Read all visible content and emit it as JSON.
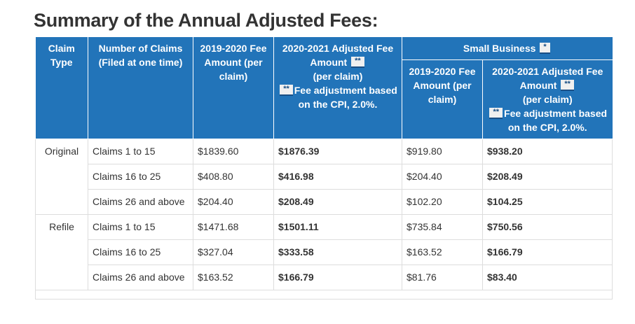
{
  "heading": "Summary of the Annual Adjusted Fees:",
  "table": {
    "headers": {
      "claim_type": "Claim Type",
      "num_claims": "Number of Claims (Filed at one time)",
      "fee_2019": "2019-2020 Fee Amount (per claim)",
      "adj_2020_line1": "2020-2021 Adjusted Fee Amount",
      "adj_2020_line2": "(per claim)",
      "adj_2020_line3": "Fee adjustment based on the CPI, 2.0%.",
      "small_business": "Small Business",
      "sb_fee_2019": "2019-2020 Fee Amount (per claim)",
      "sb_adj_line1": "2020-2021 Adjusted Fee Amount",
      "sb_adj_line2": "(per claim)",
      "sb_adj_line3": "Fee adjustment based on the CPI, 2.0%.",
      "single_mark": "*",
      "double_mark": "**"
    },
    "groups": [
      {
        "type": "Original",
        "rows": [
          {
            "claims": "Claims 1 to 15",
            "fee_2019": "$1839.60",
            "adj_2020": "$1876.39",
            "sb_2019": "$919.80",
            "sb_adj": "$938.20"
          },
          {
            "claims": "Claims 16 to 25",
            "fee_2019": "$408.80",
            "adj_2020": "$416.98",
            "sb_2019": "$204.40",
            "sb_adj": "$208.49"
          },
          {
            "claims": "Claims 26 and above",
            "fee_2019": "$204.40",
            "adj_2020": "$208.49",
            "sb_2019": "$102.20",
            "sb_adj": "$104.25"
          }
        ]
      },
      {
        "type": "Refile",
        "rows": [
          {
            "claims": "Claims 1 to 15",
            "fee_2019": "$1471.68",
            "adj_2020": "$1501.11",
            "sb_2019": "$735.84",
            "sb_adj": "$750.56"
          },
          {
            "claims": "Claims 16 to 25",
            "fee_2019": "$327.04",
            "adj_2020": "$333.58",
            "sb_2019": "$163.52",
            "sb_adj": "$166.79"
          },
          {
            "claims": "Claims 26 and above",
            "fee_2019": "$163.52",
            "adj_2020": "$166.79",
            "sb_2019": "$81.76",
            "sb_adj": "$83.40"
          }
        ]
      }
    ]
  }
}
